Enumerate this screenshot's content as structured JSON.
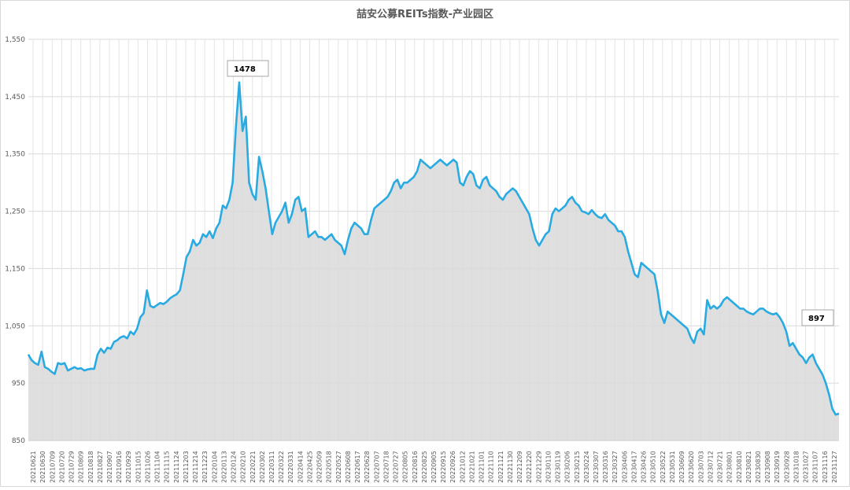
{
  "chart_data": {
    "type": "area",
    "title": "喆安公募REITs指数-产业园区",
    "xlabel": "",
    "ylabel": "",
    "ylim": [
      850,
      1550
    ],
    "y_ticks": [
      "850",
      "950",
      "1,050",
      "1,150",
      "1,250",
      "1,350",
      "1,450",
      "1,550"
    ],
    "y_tick_values": [
      850,
      950,
      1050,
      1150,
      1250,
      1350,
      1450,
      1550
    ],
    "grid": true,
    "legend": "none",
    "colors": {
      "line": "#29abe2",
      "fill": "#d9d9d9",
      "grid": "#d9d9d9",
      "text": "#595959"
    },
    "x_ticks": [
      "20210621",
      "20210630",
      "20210709",
      "20210720",
      "20210729",
      "20210809",
      "20210818",
      "20210827",
      "20210907",
      "20210916",
      "20210929",
      "20211015",
      "20211026",
      "20211104",
      "20211115",
      "20211124",
      "20211203",
      "20211214",
      "20211223",
      "20220104",
      "20220113",
      "20220124",
      "20220210",
      "20220221",
      "20220302",
      "20220311",
      "20220322",
      "20220331",
      "20220414",
      "20220425",
      "20220509",
      "20220518",
      "20220527",
      "20220608",
      "20220617",
      "20220628",
      "20220707",
      "20220718",
      "20220727",
      "20220805",
      "20220816",
      "20220825",
      "20220905",
      "20220915",
      "20220926",
      "20221012",
      "20221021",
      "20221101",
      "20221110",
      "20221121",
      "20221130",
      "20221209",
      "20221220",
      "20221229",
      "20230110",
      "20230119",
      "20230206",
      "20230215",
      "20230224",
      "20230307",
      "20230316",
      "20230327",
      "20230406",
      "20230417",
      "20230426",
      "20230510",
      "20230522",
      "20230531",
      "20230609",
      "20230620",
      "20230703",
      "20230712",
      "20230721",
      "20230801",
      "20230810",
      "20230821",
      "20230830",
      "20230908",
      "20230919",
      "20230928",
      "20231018",
      "20231027",
      "20231107",
      "20231116",
      "20231127"
    ],
    "series": [
      {
        "values": [
          1000,
          990,
          985,
          982,
          1005,
          978,
          975,
          970,
          966,
          985,
          983,
          985,
          972,
          975,
          978,
          975,
          976,
          972,
          974,
          975,
          975,
          1000,
          1010,
          1003,
          1012,
          1010,
          1022,
          1025,
          1030,
          1032,
          1028,
          1040,
          1035,
          1045,
          1065,
          1072,
          1112,
          1085,
          1082,
          1086,
          1090,
          1088,
          1092,
          1098,
          1102,
          1105,
          1112,
          1140,
          1170,
          1180,
          1200,
          1190,
          1195,
          1210,
          1205,
          1215,
          1203,
          1220,
          1230,
          1260,
          1255,
          1270,
          1300,
          1398,
          1475,
          1390,
          1415,
          1300,
          1280,
          1270,
          1345,
          1320,
          1290,
          1250,
          1210,
          1230,
          1240,
          1250,
          1265,
          1230,
          1245,
          1270,
          1275,
          1250,
          1255,
          1205,
          1210,
          1215,
          1205,
          1205,
          1200,
          1205,
          1210,
          1200,
          1195,
          1190,
          1175,
          1200,
          1220,
          1230,
          1225,
          1220,
          1210,
          1210,
          1235,
          1255,
          1260,
          1265,
          1270,
          1275,
          1285,
          1300,
          1305,
          1290,
          1300,
          1300,
          1305,
          1310,
          1320,
          1340,
          1335,
          1330,
          1325,
          1330,
          1335,
          1340,
          1335,
          1330,
          1335,
          1340,
          1335,
          1300,
          1295,
          1310,
          1320,
          1315,
          1295,
          1290,
          1305,
          1310,
          1295,
          1290,
          1285,
          1275,
          1270,
          1280,
          1285,
          1290,
          1285,
          1275,
          1265,
          1255,
          1245,
          1220,
          1200,
          1190,
          1200,
          1210,
          1215,
          1245,
          1255,
          1250,
          1255,
          1260,
          1270,
          1275,
          1265,
          1260,
          1250,
          1248,
          1245,
          1252,
          1245,
          1240,
          1238,
          1245,
          1235,
          1230,
          1225,
          1215,
          1215,
          1205,
          1180,
          1160,
          1140,
          1135,
          1160,
          1155,
          1150,
          1145,
          1140,
          1110,
          1070,
          1055,
          1075,
          1070,
          1065,
          1060,
          1055,
          1050,
          1045,
          1030,
          1020,
          1040,
          1045,
          1035,
          1095,
          1080,
          1085,
          1080,
          1085,
          1095,
          1100,
          1095,
          1090,
          1085,
          1080,
          1080,
          1075,
          1072,
          1070,
          1075,
          1080,
          1080,
          1075,
          1072,
          1070,
          1072,
          1065,
          1055,
          1040,
          1015,
          1020,
          1010,
          1000,
          995,
          985,
          995,
          1000,
          985,
          975,
          965,
          950,
          930,
          905,
          895,
          897
        ]
      }
    ],
    "annotations": [
      {
        "text": "1478",
        "value": 1478
      },
      {
        "text": "897",
        "value": 897
      }
    ]
  }
}
